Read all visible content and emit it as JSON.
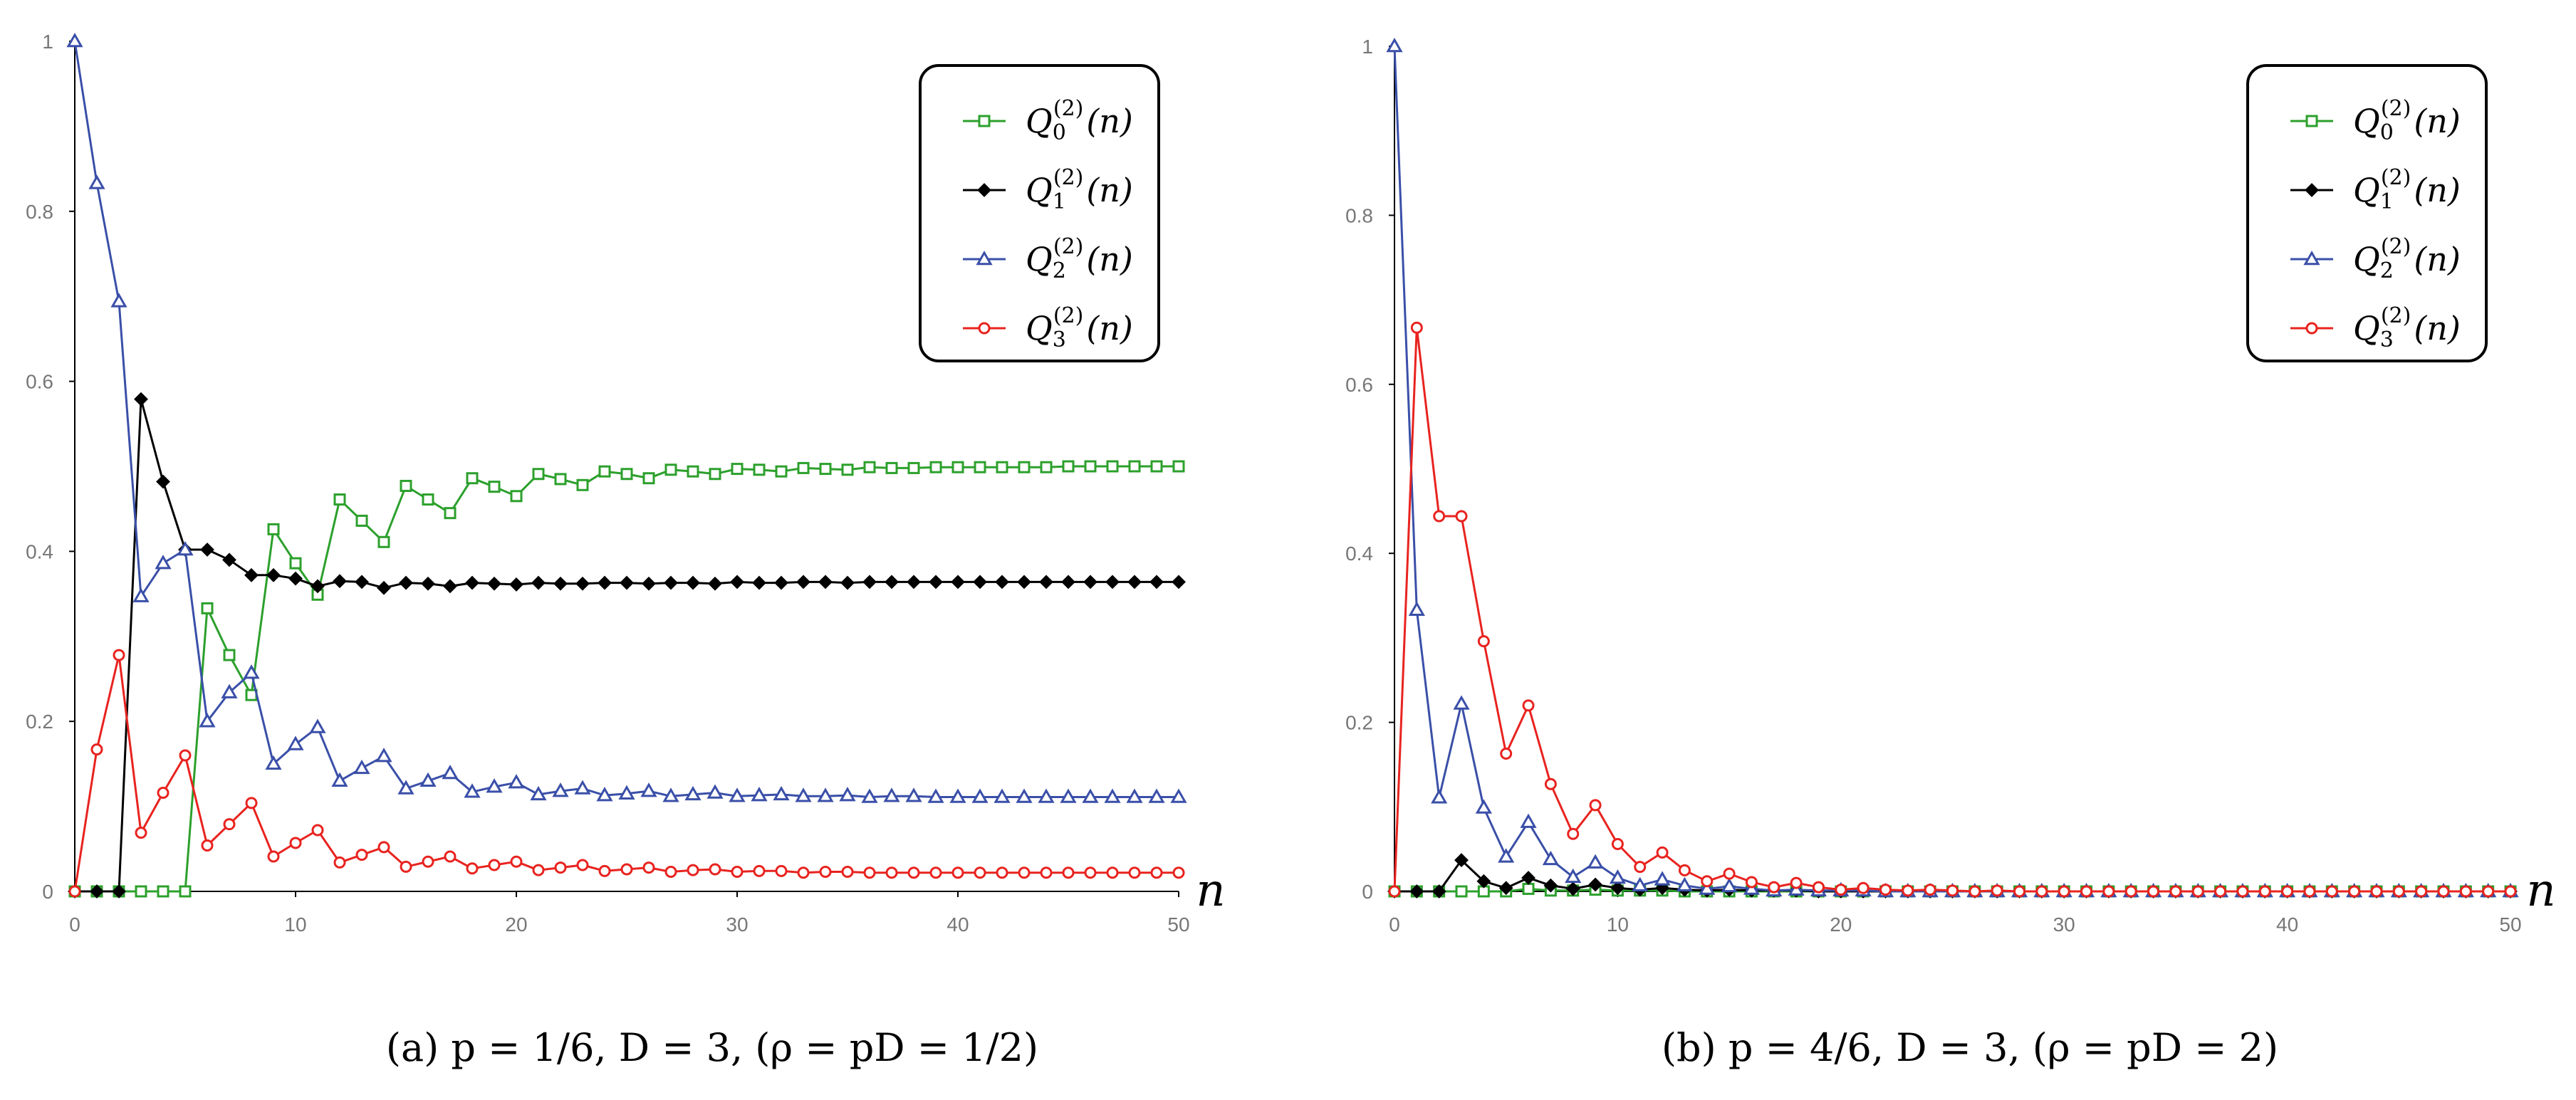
{
  "chart_data": [
    {
      "type": "line",
      "panel_label": "(a)",
      "caption": "(a)  p = 1/6,  D = 3,  (ρ = pD = 1/2)",
      "xlabel": "n",
      "ylabel": "",
      "xlim": [
        0,
        50
      ],
      "ylim": [
        0,
        1
      ],
      "xticks": [
        "0",
        "10",
        "20",
        "30",
        "40",
        "50"
      ],
      "yticks": [
        "0",
        "0.2",
        "0.4",
        "0.6",
        "0.8",
        "1"
      ],
      "grid": false,
      "legend_position": "top-right",
      "series": [
        {
          "name": "Q0",
          "label_main": "Q",
          "label_sub": "0",
          "label_sup": "(2)",
          "label_arg": "(n)",
          "color": "#2ca02c",
          "marker": "square",
          "x": [
            0,
            1,
            2,
            3,
            4,
            5,
            6,
            7,
            8,
            9,
            10,
            11,
            12,
            13,
            14,
            15,
            16,
            17,
            18,
            19,
            20,
            21,
            22,
            23,
            24,
            25,
            26,
            27,
            28,
            29,
            30,
            31,
            32,
            33,
            34,
            35,
            36,
            37,
            38,
            39,
            40,
            41,
            42,
            43,
            44,
            45,
            46,
            47,
            48,
            49,
            50
          ],
          "values": [
            0,
            0,
            0,
            0,
            0,
            0,
            0.333,
            0.278,
            0.231,
            0.426,
            0.386,
            0.349,
            0.461,
            0.436,
            0.411,
            0.477,
            0.461,
            0.445,
            0.486,
            0.476,
            0.465,
            0.491,
            0.485,
            0.478,
            0.494,
            0.491,
            0.486,
            0.496,
            0.494,
            0.491,
            0.497,
            0.496,
            0.494,
            0.498,
            0.497,
            0.496,
            0.499,
            0.498,
            0.498,
            0.499,
            0.499,
            0.499,
            0.499,
            0.499,
            0.499,
            0.5,
            0.5,
            0.5,
            0.5,
            0.5,
            0.5
          ]
        },
        {
          "name": "Q1",
          "label_main": "Q",
          "label_sub": "1",
          "label_sup": "(2)",
          "label_arg": "(n)",
          "color": "#000000",
          "marker": "diamond",
          "x": [
            0,
            1,
            2,
            3,
            4,
            5,
            6,
            7,
            8,
            9,
            10,
            11,
            12,
            13,
            14,
            15,
            16,
            17,
            18,
            19,
            20,
            21,
            22,
            23,
            24,
            25,
            26,
            27,
            28,
            29,
            30,
            31,
            32,
            33,
            34,
            35,
            36,
            37,
            38,
            39,
            40,
            41,
            42,
            43,
            44,
            45,
            46,
            47,
            48,
            49,
            50
          ],
          "values": [
            0,
            0,
            0,
            0.579,
            0.482,
            0.402,
            0.402,
            0.39,
            0.372,
            0.372,
            0.368,
            0.359,
            0.365,
            0.364,
            0.357,
            0.363,
            0.362,
            0.359,
            0.363,
            0.362,
            0.361,
            0.363,
            0.362,
            0.362,
            0.363,
            0.363,
            0.362,
            0.363,
            0.363,
            0.362,
            0.364,
            0.363,
            0.363,
            0.364,
            0.364,
            0.363,
            0.364,
            0.364,
            0.364,
            0.364,
            0.364,
            0.364,
            0.364,
            0.364,
            0.364,
            0.364,
            0.364,
            0.364,
            0.364,
            0.364,
            0.364
          ]
        },
        {
          "name": "Q2",
          "label_main": "Q",
          "label_sub": "2",
          "label_sup": "(2)",
          "label_arg": "(n)",
          "color": "#3a4fa8",
          "marker": "triangle",
          "x": [
            0,
            1,
            2,
            3,
            4,
            5,
            6,
            7,
            8,
            9,
            10,
            11,
            12,
            13,
            14,
            15,
            16,
            17,
            18,
            19,
            20,
            21,
            22,
            23,
            24,
            25,
            26,
            27,
            28,
            29,
            30,
            31,
            32,
            33,
            34,
            35,
            36,
            37,
            38,
            39,
            40,
            41,
            42,
            43,
            44,
            45,
            46,
            47,
            48,
            49,
            50
          ],
          "values": [
            1,
            0.833,
            0.694,
            0.347,
            0.386,
            0.402,
            0.2,
            0.234,
            0.257,
            0.15,
            0.173,
            0.193,
            0.13,
            0.145,
            0.159,
            0.121,
            0.13,
            0.139,
            0.117,
            0.123,
            0.128,
            0.114,
            0.118,
            0.121,
            0.113,
            0.115,
            0.118,
            0.112,
            0.114,
            0.116,
            0.112,
            0.113,
            0.114,
            0.112,
            0.112,
            0.113,
            0.111,
            0.112,
            0.112,
            0.111,
            0.111,
            0.111,
            0.111,
            0.111,
            0.111,
            0.111,
            0.111,
            0.111,
            0.111,
            0.111,
            0.111
          ]
        },
        {
          "name": "Q3",
          "label_main": "Q",
          "label_sub": "3",
          "label_sup": "(2)",
          "label_arg": "(n)",
          "color": "#e8231f",
          "marker": "circle",
          "x": [
            0,
            1,
            2,
            3,
            4,
            5,
            6,
            7,
            8,
            9,
            10,
            11,
            12,
            13,
            14,
            15,
            16,
            17,
            18,
            19,
            20,
            21,
            22,
            23,
            24,
            25,
            26,
            27,
            28,
            29,
            30,
            31,
            32,
            33,
            34,
            35,
            36,
            37,
            38,
            39,
            40,
            41,
            42,
            43,
            44,
            45,
            46,
            47,
            48,
            49,
            50
          ],
          "values": [
            0,
            0.167,
            0.278,
            0.069,
            0.116,
            0.16,
            0.054,
            0.079,
            0.104,
            0.041,
            0.057,
            0.072,
            0.034,
            0.043,
            0.052,
            0.029,
            0.035,
            0.041,
            0.027,
            0.031,
            0.035,
            0.025,
            0.028,
            0.031,
            0.024,
            0.026,
            0.028,
            0.023,
            0.025,
            0.026,
            0.023,
            0.024,
            0.024,
            0.022,
            0.023,
            0.023,
            0.022,
            0.022,
            0.022,
            0.022,
            0.022,
            0.022,
            0.022,
            0.022,
            0.022,
            0.022,
            0.022,
            0.022,
            0.022,
            0.022,
            0.022
          ]
        }
      ]
    },
    {
      "type": "line",
      "panel_label": "(b)",
      "caption": "(b)  p = 4/6,  D = 3,  (ρ = pD = 2)",
      "xlabel": "n",
      "ylabel": "",
      "xlim": [
        0,
        50
      ],
      "ylim": [
        0,
        1
      ],
      "xticks": [
        "0",
        "10",
        "20",
        "30",
        "40",
        "50"
      ],
      "yticks": [
        "0",
        "0.2",
        "0.4",
        "0.6",
        "0.8",
        "1"
      ],
      "grid": false,
      "legend_position": "top-right",
      "series": [
        {
          "name": "Q0",
          "label_main": "Q",
          "label_sub": "0",
          "label_sup": "(2)",
          "label_arg": "(n)",
          "color": "#2ca02c",
          "marker": "square",
          "x": [
            0,
            1,
            2,
            3,
            4,
            5,
            6,
            7,
            8,
            9,
            10,
            11,
            12,
            13,
            14,
            15,
            16,
            17,
            18,
            19,
            20,
            21,
            22,
            23,
            24,
            25,
            26,
            27,
            28,
            29,
            30,
            31,
            32,
            33,
            34,
            35,
            36,
            37,
            38,
            39,
            40,
            41,
            42,
            43,
            44,
            45,
            46,
            47,
            48,
            49,
            50
          ],
          "values": [
            0,
            0,
            0,
            0,
            0,
            0,
            0.003,
            0.001,
            0.001,
            0.002,
            0.001,
            0.001,
            0.001,
            0,
            0,
            0,
            0,
            0,
            0,
            0,
            0,
            0,
            0,
            0,
            0,
            0,
            0,
            0,
            0,
            0,
            0,
            0,
            0,
            0,
            0,
            0,
            0,
            0,
            0,
            0,
            0,
            0,
            0,
            0,
            0,
            0,
            0,
            0,
            0,
            0,
            0
          ]
        },
        {
          "name": "Q1",
          "label_main": "Q",
          "label_sub": "1",
          "label_sup": "(2)",
          "label_arg": "(n)",
          "color": "#000000",
          "marker": "diamond",
          "x": [
            0,
            1,
            2,
            3,
            4,
            5,
            6,
            7,
            8,
            9,
            10,
            11,
            12,
            13,
            14,
            15,
            16,
            17,
            18,
            19,
            20,
            21,
            22,
            23,
            24,
            25,
            26,
            27,
            28,
            29,
            30,
            31,
            32,
            33,
            34,
            35,
            36,
            37,
            38,
            39,
            40,
            41,
            42,
            43,
            44,
            45,
            46,
            47,
            48,
            49,
            50
          ],
          "values": [
            0,
            0,
            0,
            0.037,
            0.012,
            0.004,
            0.016,
            0.007,
            0.003,
            0.008,
            0.004,
            0.002,
            0.004,
            0.002,
            0.001,
            0.002,
            0.001,
            0.001,
            0.001,
            0,
            0,
            0,
            0,
            0,
            0,
            0,
            0,
            0,
            0,
            0,
            0,
            0,
            0,
            0,
            0,
            0,
            0,
            0,
            0,
            0,
            0,
            0,
            0,
            0,
            0,
            0,
            0,
            0,
            0,
            0,
            0
          ]
        },
        {
          "name": "Q2",
          "label_main": "Q",
          "label_sub": "2",
          "label_sup": "(2)",
          "label_arg": "(n)",
          "color": "#3a4fa8",
          "marker": "triangle",
          "x": [
            0,
            1,
            2,
            3,
            4,
            5,
            6,
            7,
            8,
            9,
            10,
            11,
            12,
            13,
            14,
            15,
            16,
            17,
            18,
            19,
            20,
            21,
            22,
            23,
            24,
            25,
            26,
            27,
            28,
            29,
            30,
            31,
            32,
            33,
            34,
            35,
            36,
            37,
            38,
            39,
            40,
            41,
            42,
            43,
            44,
            45,
            46,
            47,
            48,
            49,
            50
          ],
          "values": [
            1,
            0.333,
            0.111,
            0.222,
            0.099,
            0.041,
            0.082,
            0.038,
            0.017,
            0.034,
            0.016,
            0.007,
            0.014,
            0.007,
            0.003,
            0.006,
            0.003,
            0.001,
            0.002,
            0.001,
            0.001,
            0.001,
            0,
            0,
            0,
            0,
            0,
            0,
            0,
            0,
            0,
            0,
            0,
            0,
            0,
            0,
            0,
            0,
            0,
            0,
            0,
            0,
            0,
            0,
            0,
            0,
            0,
            0,
            0,
            0,
            0
          ]
        },
        {
          "name": "Q3",
          "label_main": "Q",
          "label_sub": "3",
          "label_sup": "(2)",
          "label_arg": "(n)",
          "color": "#e8231f",
          "marker": "circle",
          "x": [
            0,
            1,
            2,
            3,
            4,
            5,
            6,
            7,
            8,
            9,
            10,
            11,
            12,
            13,
            14,
            15,
            16,
            17,
            18,
            19,
            20,
            21,
            22,
            23,
            24,
            25,
            26,
            27,
            28,
            29,
            30,
            31,
            32,
            33,
            34,
            35,
            36,
            37,
            38,
            39,
            40,
            41,
            42,
            43,
            44,
            45,
            46,
            47,
            48,
            49,
            50
          ],
          "values": [
            0,
            0.667,
            0.444,
            0.444,
            0.296,
            0.163,
            0.22,
            0.127,
            0.068,
            0.102,
            0.056,
            0.029,
            0.046,
            0.025,
            0.012,
            0.021,
            0.011,
            0.005,
            0.01,
            0.005,
            0.002,
            0.004,
            0.002,
            0.001,
            0.002,
            0.001,
            0,
            0.001,
            0,
            0,
            0,
            0,
            0,
            0,
            0,
            0,
            0,
            0,
            0,
            0,
            0,
            0,
            0,
            0,
            0,
            0,
            0,
            0,
            0,
            0,
            0
          ]
        }
      ]
    }
  ]
}
